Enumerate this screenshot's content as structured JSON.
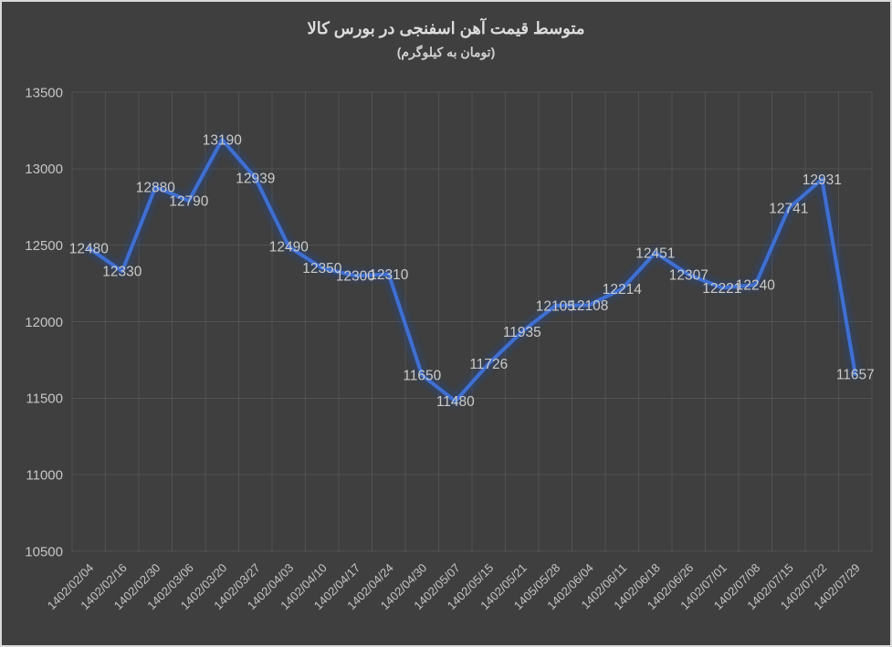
{
  "title": "متوسط قیمت آهن اسفنجی در بورس کالا",
  "subtitle": "(تومان به کیلوگرم)",
  "colors": {
    "background": "#3f3f3f",
    "border": "#d9d9d9",
    "gridline": "#525252",
    "line": "#3f6fd1",
    "line_glow": "#24488f",
    "axis_text": "#c6c6c6",
    "label_text": "#cbcac8",
    "title_text": "#dcdcdc"
  },
  "chart_data": {
    "type": "line",
    "title": "متوسط قیمت آهن اسفنجی در بورس کالا",
    "subtitle": "(تومان به کیلوگرم)",
    "categories": [
      "1402/02/04",
      "1402/02/16",
      "1402/02/30",
      "1402/03/06",
      "1402/03/20",
      "1402/03/27",
      "1402/04/03",
      "1402/04/10",
      "1402/04/17",
      "1402/04/24",
      "1402/04/30",
      "1402/05/07",
      "1402/05/15",
      "1402/05/21",
      "1405/05/28",
      "1402/06/04",
      "1402/06/11",
      "1402/06/18",
      "1402/06/26",
      "1402/07/01",
      "1402/07/08",
      "1402/07/15",
      "1402/07/22",
      "1402/07/29"
    ],
    "values": [
      12480,
      12330,
      12880,
      12790,
      13190,
      12939,
      12490,
      12350,
      12300,
      12310,
      11650,
      11480,
      11726,
      11935,
      12105,
      12108,
      12214,
      12451,
      12307,
      12221,
      12240,
      12741,
      12931,
      11657
    ],
    "yticks": [
      10500,
      11000,
      11500,
      12000,
      12500,
      13000,
      13500
    ],
    "ylim": [
      10500,
      13500
    ],
    "xlabel": "",
    "ylabel": "",
    "grid": "major-horizontal-and-vertical",
    "legend": "none",
    "data_labels": "center",
    "x_label_rotation_deg": 45
  }
}
